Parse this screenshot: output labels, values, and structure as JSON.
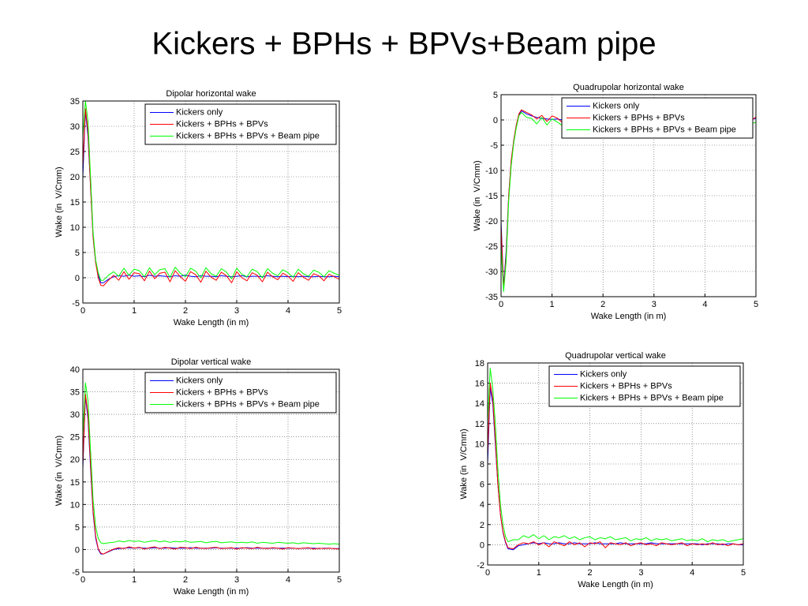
{
  "title": "Kickers + BPHs + BPVs+Beam pipe",
  "chart_data": [
    {
      "type": "line",
      "title": "Dipolar horizontal wake",
      "xlabel": "Wake Length (in m)",
      "ylabel": "Wake (in  V/Cmm)",
      "xlim": [
        0,
        5
      ],
      "xticks": [
        0,
        1,
        2,
        3,
        4,
        5
      ],
      "ylim": [
        -5,
        35
      ],
      "yticks": [
        -5,
        0,
        5,
        10,
        15,
        20,
        25,
        30,
        35
      ],
      "grid": true,
      "legend": "upper right",
      "x": [
        0,
        0.05,
        0.1,
        0.15,
        0.2,
        0.25,
        0.3,
        0.35,
        0.4,
        0.5,
        0.6,
        0.7,
        0.8,
        0.9,
        1,
        1.1,
        1.2,
        1.3,
        1.4,
        1.5,
        1.6,
        1.7,
        1.8,
        1.9,
        2,
        2.1,
        2.2,
        2.3,
        2.4,
        2.5,
        2.6,
        2.7,
        2.8,
        2.9,
        3,
        3.1,
        3.2,
        3.3,
        3.4,
        3.5,
        3.6,
        3.7,
        3.8,
        3.9,
        4,
        4.1,
        4.2,
        4.3,
        4.4,
        4.5,
        4.6,
        4.7,
        4.8,
        4.9,
        5
      ],
      "series": [
        {
          "name": "Kickers only",
          "color": "#0000ff",
          "values": [
            20,
            33,
            28,
            18,
            8,
            3,
            0.5,
            -1,
            -1,
            -0.3,
            0.2,
            0.4,
            0.3,
            0.5,
            0.3,
            0.4,
            0.2,
            0.5,
            0.3,
            0.4,
            0.3,
            0.2,
            0.4,
            0.3,
            0.5,
            0.3,
            0.2,
            0.4,
            0.3,
            0.3,
            0.2,
            0.4,
            0.3,
            0.2,
            0.3,
            0.4,
            0.2,
            0.3,
            0.3,
            0.2,
            0.4,
            0.3,
            0.2,
            0.3,
            0.2,
            0.3,
            0.2,
            0.3,
            0.2,
            0.2,
            0.3,
            0.2,
            0.2,
            0.3,
            0.2
          ]
        },
        {
          "name": "Kickers + BPHs + BPVs",
          "color": "#ff0000",
          "values": [
            22,
            33.5,
            29,
            18,
            8,
            3,
            0,
            -1.5,
            -1.6,
            -0.5,
            0.5,
            -0.5,
            1.2,
            -0.3,
            1.0,
            0.8,
            -0.6,
            1.3,
            -0.2,
            0.9,
            1.1,
            -0.8,
            1.4,
            0.2,
            -0.7,
            1.2,
            0.6,
            -0.9,
            1.3,
            0.1,
            -0.5,
            1.1,
            0.4,
            -1.0,
            1.2,
            0,
            -0.6,
            1.0,
            0.5,
            -0.8,
            1.1,
            0.2,
            -0.4,
            0.9,
            0.3,
            -0.7,
            1.0,
            0.1,
            -0.5,
            0.8,
            0.4,
            -0.6,
            0.7,
            0.2,
            -0.3
          ]
        },
        {
          "name": "Kickers + BPHs + BPVs + Beam pipe",
          "color": "#00ff00",
          "values": [
            28,
            35,
            31,
            20,
            9,
            3.5,
            1,
            -0.5,
            -0.5,
            0.5,
            1.2,
            0.3,
            1.9,
            0.5,
            1.7,
            1.4,
            0.2,
            2.0,
            0.6,
            1.6,
            1.8,
            0.1,
            2.1,
            0.9,
            0.2,
            1.9,
            1.3,
            0,
            2.0,
            0.8,
            0.3,
            1.8,
            1.1,
            -0.2,
            1.9,
            0.7,
            0.2,
            1.7,
            1.2,
            0,
            1.8,
            0.9,
            0.4,
            1.6,
            1.0,
            0.1,
            1.7,
            0.8,
            0.3,
            1.5,
            1.1,
            0.2,
            1.4,
            0.9,
            0.5
          ]
        }
      ]
    },
    {
      "type": "line",
      "title": "Quadrupolar horizontal wake",
      "xlabel": "Wake Length (in m)",
      "ylabel": "Wake (in  V/Cmm)",
      "xlim": [
        0,
        5
      ],
      "xticks": [
        0,
        1,
        2,
        3,
        4,
        5
      ],
      "ylim": [
        -35,
        5
      ],
      "yticks": [
        -35,
        -30,
        -25,
        -20,
        -15,
        -10,
        -5,
        0,
        5
      ],
      "grid": true,
      "legend": "upper right",
      "x": [
        0,
        0.05,
        0.1,
        0.15,
        0.2,
        0.25,
        0.3,
        0.35,
        0.4,
        0.5,
        0.6,
        0.7,
        0.8,
        0.9,
        1,
        1.1,
        1.2,
        1.3,
        1.4,
        1.5,
        1.6,
        1.7,
        1.8,
        1.9,
        2,
        2.1,
        2.2,
        2.3,
        2.4,
        2.5,
        2.6,
        2.7,
        2.8,
        2.9,
        3,
        3.1,
        3.2,
        3.3,
        3.4,
        3.5,
        3.6,
        3.7,
        3.8,
        3.9,
        4,
        4.1,
        4.2,
        4.3,
        4.4,
        4.5,
        4.6,
        4.7,
        4.8,
        4.9,
        5
      ],
      "series": [
        {
          "name": "Kickers only",
          "color": "#0000ff",
          "values": [
            -20,
            -33,
            -26,
            -15,
            -8,
            -4,
            -1,
            1,
            1.8,
            1.2,
            0.8,
            0.5,
            0.3,
            0.2,
            0.1,
            0.2,
            0,
            0.1,
            0.2,
            0.1,
            0,
            0.1,
            0.2,
            0.1,
            0,
            0.1,
            0.1,
            0,
            0.1,
            0.2,
            0.1,
            0,
            0.1,
            0.1,
            0,
            0.1,
            0.2,
            0.1,
            0,
            0.1,
            0,
            0.1,
            0.1,
            0,
            0.1,
            0.2,
            0.1,
            0,
            0.1,
            0.1,
            0,
            0.1,
            0,
            0.1,
            0.3
          ]
        },
        {
          "name": "Kickers + BPHs + BPVs",
          "color": "#ff0000",
          "values": [
            -21,
            -33.5,
            -27,
            -15,
            -8,
            -4,
            -1,
            1.2,
            2,
            1.5,
            1.0,
            0.2,
            0.9,
            -0.3,
            0.8,
            0.4,
            -0.5,
            0.7,
            0.1,
            -0.4,
            0.9,
            0,
            -0.6,
            0.8,
            0.3,
            -0.4,
            0.7,
            -0.2,
            0.6,
            0.2,
            -0.5,
            0.8,
            0,
            -0.3,
            0.7,
            0.1,
            -0.6,
            0.6,
            0.3,
            -0.4,
            0.8,
            -0.1,
            0.5,
            0.2,
            -0.5,
            0.7,
            0,
            -0.3,
            0.6,
            0.1,
            -0.4,
            0.5,
            0.2,
            -0.2,
            0.6
          ]
        },
        {
          "name": "Kickers + BPHs + BPVs + Beam pipe",
          "color": "#00ff00",
          "values": [
            -25,
            -34,
            -28,
            -16,
            -9,
            -4.5,
            -1.5,
            0.8,
            1.5,
            0.5,
            0.3,
            -0.8,
            0.5,
            -1.0,
            0.2,
            -0.4,
            -1.1,
            0.3,
            -0.6,
            -1.0,
            0.4,
            -0.7,
            -1.2,
            0.2,
            -0.5,
            -0.9,
            0.3,
            -0.8,
            0.1,
            -0.4,
            -1.0,
            0.2,
            -0.6,
            -0.9,
            0.3,
            -0.5,
            -1.1,
            0.1,
            -0.4,
            -0.9,
            0.2,
            -0.7,
            0,
            -0.5,
            -1.0,
            0.1,
            -0.6,
            -0.8,
            0.2,
            -0.4,
            -0.9,
            0,
            -0.5,
            -0.7,
            -0.5
          ]
        }
      ]
    },
    {
      "type": "line",
      "title": "Dipolar vertical wake",
      "xlabel": "Wake Length (in m)",
      "ylabel": "Wake (in  V/Cmm)",
      "xlim": [
        0,
        5
      ],
      "xticks": [
        0,
        1,
        2,
        3,
        4,
        5
      ],
      "ylim": [
        -5,
        40
      ],
      "yticks": [
        -5,
        0,
        5,
        10,
        15,
        20,
        25,
        30,
        35,
        40
      ],
      "grid": true,
      "legend": "upper right",
      "x": [
        0,
        0.05,
        0.1,
        0.15,
        0.2,
        0.25,
        0.3,
        0.35,
        0.4,
        0.5,
        0.6,
        0.7,
        0.8,
        0.9,
        1,
        1.1,
        1.2,
        1.3,
        1.4,
        1.5,
        1.6,
        1.7,
        1.8,
        1.9,
        2,
        2.1,
        2.2,
        2.3,
        2.4,
        2.5,
        2.6,
        2.7,
        2.8,
        2.9,
        3,
        3.1,
        3.2,
        3.3,
        3.4,
        3.5,
        3.6,
        3.7,
        3.8,
        3.9,
        4,
        4.1,
        4.2,
        4.3,
        4.4,
        4.5,
        4.6,
        4.7,
        4.8,
        4.9,
        5
      ],
      "series": [
        {
          "name": "Kickers only",
          "color": "#0000ff",
          "values": [
            18,
            34,
            29,
            18,
            8,
            2.5,
            0,
            -1,
            -1,
            -0.5,
            0,
            0.2,
            0.3,
            0.4,
            0.3,
            0.4,
            0.3,
            0.3,
            0.4,
            0.3,
            0.3,
            0.4,
            0.3,
            0.3,
            0.3,
            0.4,
            0.3,
            0.3,
            0.3,
            0.3,
            0.4,
            0.3,
            0.3,
            0.3,
            0.3,
            0.3,
            0.4,
            0.3,
            0.3,
            0.3,
            0.3,
            0.3,
            0.3,
            0.3,
            0.3,
            0.3,
            0.2,
            0.3,
            0.3,
            0.3,
            0.2,
            0.3,
            0.3,
            0.2,
            0.2
          ]
        },
        {
          "name": "Kickers + BPHs + BPVs",
          "color": "#ff0000",
          "values": [
            19,
            34.5,
            30,
            19,
            8.5,
            3,
            0.2,
            -0.8,
            -1,
            -0.4,
            0.1,
            0.4,
            0.2,
            0.6,
            0.3,
            0.5,
            0.1,
            0.4,
            0.6,
            0.2,
            0.5,
            0.3,
            0.1,
            0.5,
            0.4,
            0.2,
            0.5,
            0.3,
            0.2,
            0.4,
            0.5,
            0.2,
            0.3,
            0.4,
            0.1,
            0.4,
            0.3,
            0.2,
            0.5,
            0.3,
            0.2,
            0.4,
            0.3,
            0.1,
            0.4,
            0.3,
            0.2,
            0.3,
            0.4,
            0.1,
            0.3,
            0.2,
            0.3,
            0.2,
            0.1
          ]
        },
        {
          "name": "Kickers + BPHs + BPVs + Beam pipe",
          "color": "#00ff00",
          "values": [
            25,
            37,
            33,
            22,
            11,
            5,
            2.5,
            1.5,
            1.3,
            1.5,
            1.6,
            1.9,
            1.7,
            2.0,
            1.8,
            1.9,
            1.6,
            1.8,
            2.0,
            1.7,
            1.9,
            1.6,
            1.8,
            1.7,
            1.9,
            1.6,
            1.7,
            1.8,
            1.5,
            1.7,
            1.8,
            1.5,
            1.6,
            1.7,
            1.5,
            1.6,
            1.5,
            1.7,
            1.4,
            1.6,
            1.5,
            1.4,
            1.6,
            1.5,
            1.4,
            1.5,
            1.3,
            1.5,
            1.4,
            1.3,
            1.4,
            1.3,
            1.2,
            1.3,
            1.2
          ]
        }
      ]
    },
    {
      "type": "line",
      "title": "Quadrupolar vertical wake",
      "xlabel": "Wake Length (in m)",
      "ylabel": "Wake (in  V/Cmm)",
      "xlim": [
        0,
        5
      ],
      "xticks": [
        0,
        1,
        2,
        3,
        4,
        5
      ],
      "ylim": [
        -2,
        18
      ],
      "yticks": [
        -2,
        0,
        2,
        4,
        6,
        8,
        10,
        12,
        14,
        16,
        18
      ],
      "grid": true,
      "legend": "upper right",
      "x": [
        0,
        0.05,
        0.1,
        0.15,
        0.2,
        0.25,
        0.3,
        0.35,
        0.4,
        0.5,
        0.6,
        0.7,
        0.8,
        0.9,
        1,
        1.1,
        1.2,
        1.3,
        1.4,
        1.5,
        1.6,
        1.7,
        1.8,
        1.9,
        2,
        2.1,
        2.2,
        2.3,
        2.4,
        2.5,
        2.6,
        2.7,
        2.8,
        2.9,
        3,
        3.1,
        3.2,
        3.3,
        3.4,
        3.5,
        3.6,
        3.7,
        3.8,
        3.9,
        4,
        4.1,
        4.2,
        4.3,
        4.4,
        4.5,
        4.6,
        4.7,
        4.8,
        4.9,
        5
      ],
      "series": [
        {
          "name": "Kickers only",
          "color": "#0000ff",
          "values": [
            8,
            15.5,
            14,
            10,
            6,
            3,
            1.2,
            0.2,
            -0.4,
            -0.5,
            -0.1,
            0,
            0.1,
            0.2,
            0.1,
            0.2,
            0.1,
            0.1,
            0.2,
            0.1,
            0.1,
            0.2,
            0.1,
            0.1,
            0.1,
            0.2,
            0.1,
            0.1,
            0.1,
            0.1,
            0.2,
            0.1,
            0.1,
            0.1,
            0.1,
            0.1,
            0.2,
            0.1,
            0.1,
            0.1,
            0.1,
            0.1,
            0.1,
            0.1,
            0.1,
            0.1,
            0,
            0.1,
            0.1,
            0.1,
            0,
            0.1,
            0.1,
            0,
            0
          ]
        },
        {
          "name": "Kickers + BPHs + BPVs",
          "color": "#ff0000",
          "values": [
            9,
            16,
            14.5,
            10.5,
            6,
            3,
            1.3,
            0.3,
            -0.3,
            -0.4,
            0,
            0.2,
            0.1,
            0.3,
            0,
            0.2,
            -0.2,
            0.3,
            0.1,
            -0.1,
            0.3,
            0,
            0.2,
            -0.2,
            0.2,
            0.1,
            0.3,
            -0.3,
            0.2,
            0.1,
            0,
            0.2,
            -0.1,
            0.1,
            0.2,
            0,
            0.1,
            -0.1,
            0.2,
            0.1,
            0,
            0.1,
            0.2,
            -0.1,
            0.1,
            0,
            0.1,
            0,
            0.2,
            0,
            0.1,
            -0.1,
            0.1,
            0,
            0.1
          ]
        },
        {
          "name": "Kickers + BPHs + BPVs + Beam pipe",
          "color": "#00ff00",
          "values": [
            12,
            17.5,
            15.5,
            12,
            7.5,
            4,
            2,
            0.8,
            0.3,
            0.5,
            0.5,
            0.9,
            0.7,
            1.0,
            0.6,
            0.9,
            0.5,
            0.8,
            0.7,
            0.9,
            0.6,
            0.8,
            0.5,
            0.7,
            0.8,
            0.5,
            0.7,
            0.6,
            0.8,
            0.5,
            0.6,
            0.7,
            0.4,
            0.6,
            0.5,
            0.7,
            0.4,
            0.6,
            0.5,
            0.6,
            0.4,
            0.5,
            0.6,
            0.4,
            0.5,
            0.4,
            0.6,
            0.3,
            0.5,
            0.4,
            0.5,
            0.3,
            0.4,
            0.5,
            0.6
          ]
        }
      ]
    }
  ]
}
